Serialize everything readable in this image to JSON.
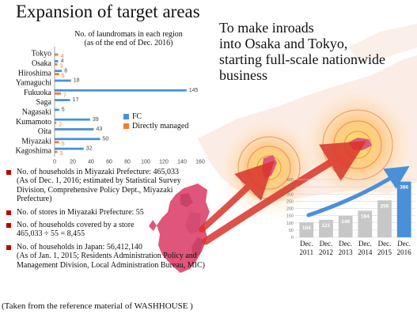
{
  "title": "Expansion of target areas",
  "headline": [
    "To make inroads",
    "into Osaka and Tokyo,",
    "starting full-scale nationwide",
    "business"
  ],
  "colors": {
    "fc": "#4a90d9",
    "direct": "#ed7d31",
    "bullet": "#c00000",
    "vbar": "#c7c7c7",
    "vbar_highlight": "#4a90d9",
    "map_land": "#f5d5c8",
    "kyushu": "#e0557a",
    "arrow": "#d9342b"
  },
  "bullets": [
    {
      "lines": [
        "No. of households in Miyazaki Prefecture: 465,033",
        "(As of Dec. 1, 2016; estimated by Statistical Survey",
        "Division, Comprehensive Policy Dept., Miyazaki",
        "Prefecture)"
      ]
    },
    {
      "lines": [
        "No. of stores in Miyazaki Prefecture: 55"
      ]
    },
    {
      "lines": [
        "No. of households covered by a store",
        "465,033 ÷ 55 = 8,455"
      ]
    },
    {
      "lines": [
        "No. of households in Japan: 56,412,140",
        "(As of Jan. 1, 2015; Residents Administration Policy and",
        "Management Division, Local Administration Bureau, MIC)"
      ]
    }
  ],
  "footer": "(Taken from the reference material of WASHHOUSE )",
  "chart_data": [
    {
      "type": "bar",
      "orientation": "horizontal",
      "title": "No. of laundromats in each region\n(as of the end of Dec. 2016)",
      "categories": [
        "Tokyo",
        "Osaka",
        "Hiroshima",
        "Yamaguchi",
        "Fukuoka",
        "Saga",
        "Nagasaki",
        "Kumamoto",
        "Oita",
        "Miyazaki",
        "Kagoshima"
      ],
      "series": [
        {
          "name": "FC",
          "values": [
            0,
            4,
            8,
            18,
            145,
            17,
            5,
            39,
            43,
            50,
            32
          ]
        },
        {
          "name": "Directly managed",
          "values": [
            4,
            3,
            5,
            0,
            7,
            0,
            0,
            2,
            0,
            5,
            3
          ]
        }
      ],
      "xticks": [
        0,
        20,
        40,
        60,
        80,
        100,
        120,
        140,
        160
      ],
      "xlim": [
        0,
        160
      ],
      "legend": "right"
    },
    {
      "type": "bar",
      "categories": [
        "Dec. 2011",
        "Dec. 2012",
        "Dec. 2013",
        "Dec. 2014",
        "Dec. 2015",
        "Dec. 2016"
      ],
      "values": [
        104,
        121,
        149,
        184,
        256,
        386
      ],
      "yticks": [
        0,
        50,
        100,
        150,
        200,
        250,
        300,
        350,
        400
      ],
      "ylim": [
        0,
        400
      ]
    }
  ]
}
